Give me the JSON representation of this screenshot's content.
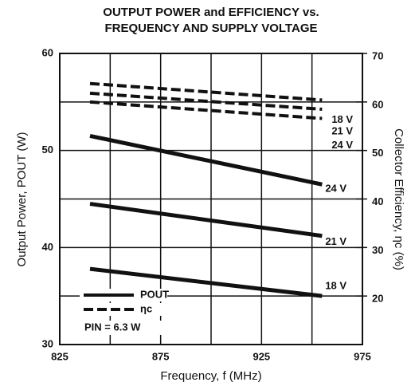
{
  "chart_data": {
    "type": "line",
    "title": "OUTPUT POWER and EFFICIENCY vs.",
    "subtitle": "FREQUENCY AND SUPPLY VOLTAGE",
    "x_label": "Frequency, f (MHz)",
    "y_label": "Output Power, POUT (W)",
    "y2_label": "Collector Efficiency, ηc (%)",
    "xlim": [
      825,
      975
    ],
    "xticks": [
      825,
      875,
      925,
      975
    ],
    "xminor": [
      850,
      900,
      950
    ],
    "ylim": [
      30,
      60
    ],
    "yticks": [
      30,
      40,
      50,
      60
    ],
    "yminor": [
      35,
      45,
      55
    ],
    "y2lim": [
      10,
      70
    ],
    "y2ticks": [
      20,
      30,
      40,
      50,
      60,
      70
    ],
    "grid": true,
    "legend": [
      {
        "label": "POUT",
        "style": "solid"
      },
      {
        "label": "ηc",
        "style": "dashed"
      }
    ],
    "annotation": "PIN = 6.3 W",
    "series": [
      {
        "name": "24 V",
        "color": "#111",
        "style": "solid",
        "x": [
          840,
          955
        ],
        "values": [
          51.5,
          46.5
        ]
      },
      {
        "name": "21 V",
        "color": "#111",
        "style": "solid",
        "x": [
          840,
          955
        ],
        "values": [
          44.5,
          41.2
        ]
      },
      {
        "name": "18 V",
        "color": "#111",
        "style": "solid",
        "x": [
          840,
          955
        ],
        "values": [
          37.8,
          35
        ]
      },
      {
        "name": "18 V",
        "color": "#111",
        "style": "dashed",
        "axis": "y2",
        "x": [
          840,
          955
        ],
        "values": [
          63.8,
          60.4
        ]
      },
      {
        "name": "21 V",
        "color": "#111",
        "style": "dashed",
        "axis": "y2",
        "x": [
          840,
          955
        ],
        "values": [
          61.8,
          58.5
        ]
      },
      {
        "name": "24 V",
        "color": "#111",
        "style": "dashed",
        "axis": "y2",
        "x": [
          840,
          955
        ],
        "values": [
          60,
          56.6
        ]
      }
    ]
  }
}
